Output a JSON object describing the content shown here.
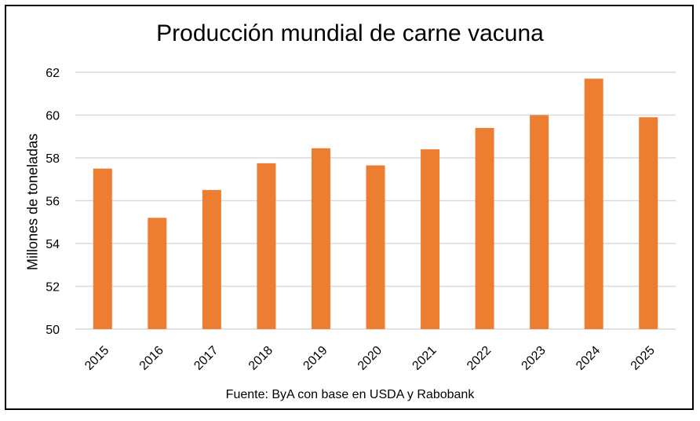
{
  "chart_data": {
    "type": "bar",
    "title": "Producción mundial de carne vacuna",
    "ylabel": "Millones de toneladas",
    "xlabel": "",
    "source": "Fuente: ByA con base en USDA y Rabobank",
    "categories": [
      "2015",
      "2016",
      "2017",
      "2018",
      "2019",
      "2020",
      "2021",
      "2022",
      "2023",
      "2024",
      "2025"
    ],
    "values": [
      57.5,
      55.2,
      56.5,
      57.75,
      58.45,
      57.65,
      58.4,
      59.4,
      60.0,
      61.7,
      59.9
    ],
    "ylim": [
      50,
      62
    ],
    "yticks": [
      "50",
      "52",
      "54",
      "56",
      "58",
      "60",
      "62"
    ],
    "grid": true,
    "legend": "none",
    "colors": {
      "bar": "#ED7D31",
      "grid": "#D9D9D9"
    }
  }
}
